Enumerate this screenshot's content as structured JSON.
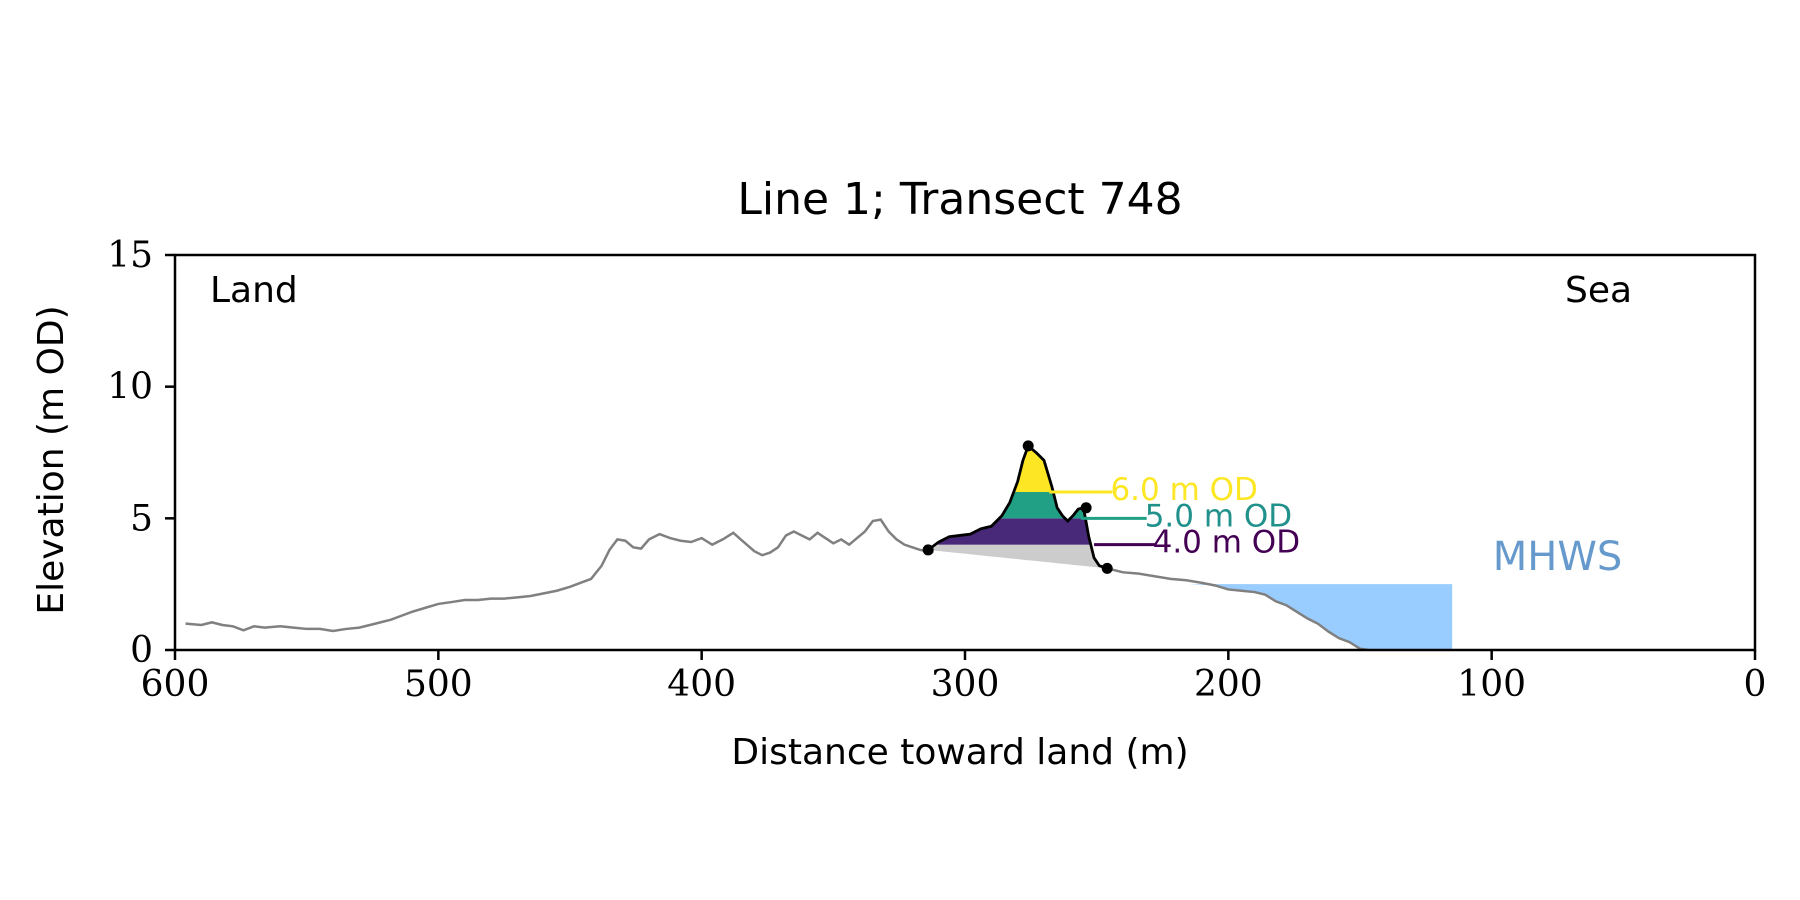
{
  "chart_data": {
    "type": "line",
    "title": "Line 1; Transect 748",
    "xlabel": "Distance toward land (m)",
    "ylabel": "Elevation (m OD)",
    "xlim": [
      600,
      0
    ],
    "ylim": [
      0,
      15
    ],
    "x_ticks": [
      600,
      500,
      400,
      300,
      200,
      100,
      0
    ],
    "y_ticks": [
      0,
      5,
      10,
      15
    ],
    "grid": false,
    "annotations": {
      "land": "Land",
      "sea": "Sea",
      "mhws": "MHWS"
    },
    "colors": {
      "profile": "#808080",
      "dune_outline": "#000000",
      "dune_base_fill": "#cccccc",
      "sea_fill": "#99ccff",
      "mhws_text": "#6699cc",
      "level_6": "#fde725",
      "level_5": "#21a085",
      "level_4": "#440154",
      "band_6": "#fde725",
      "band_5": "#21a085",
      "band_4": "#482878"
    },
    "series": [
      {
        "role": "profile",
        "x": [
          596,
          590,
          586,
          582,
          578,
          574,
          570,
          566,
          560,
          555,
          550,
          545,
          540,
          535,
          530,
          526,
          522,
          518,
          514,
          510,
          505,
          500,
          495,
          490,
          485,
          480,
          475,
          470,
          465,
          460,
          455,
          450,
          446,
          442,
          438,
          435,
          432,
          429,
          426,
          423,
          420,
          416,
          412,
          408,
          404,
          400,
          396,
          392,
          388,
          384,
          380,
          377,
          374,
          371,
          368,
          365,
          362,
          359,
          356,
          353,
          350,
          347,
          344,
          341,
          338,
          335,
          332,
          329,
          326,
          323,
          320,
          317,
          314,
          312
        ],
        "y": [
          1.0,
          0.95,
          1.05,
          0.95,
          0.9,
          0.75,
          0.9,
          0.85,
          0.9,
          0.85,
          0.8,
          0.8,
          0.72,
          0.8,
          0.85,
          0.95,
          1.05,
          1.15,
          1.3,
          1.45,
          1.6,
          1.75,
          1.82,
          1.9,
          1.9,
          1.95,
          1.95,
          2.0,
          2.05,
          2.15,
          2.25,
          2.4,
          2.55,
          2.7,
          3.2,
          3.8,
          4.2,
          4.15,
          3.9,
          3.85,
          4.2,
          4.4,
          4.25,
          4.15,
          4.1,
          4.25,
          4.0,
          4.2,
          4.45,
          4.1,
          3.75,
          3.6,
          3.7,
          3.9,
          4.35,
          4.5,
          4.35,
          4.2,
          4.45,
          4.25,
          4.05,
          4.2,
          4.0,
          4.25,
          4.5,
          4.9,
          4.95,
          4.5,
          4.2,
          4.0,
          3.9,
          3.8,
          3.75,
          3.7
        ]
      },
      {
        "role": "profile",
        "x": [
          246,
          240,
          234,
          228,
          222,
          216,
          210,
          205,
          200,
          195,
          190,
          186,
          182,
          178,
          174,
          170,
          166,
          162,
          158,
          154,
          150,
          147
        ],
        "y": [
          3.1,
          2.95,
          2.9,
          2.8,
          2.7,
          2.65,
          2.55,
          2.45,
          2.3,
          2.25,
          2.2,
          2.1,
          1.85,
          1.7,
          1.45,
          1.2,
          1.0,
          0.7,
          0.45,
          0.3,
          0.05,
          0.0
        ]
      },
      {
        "role": "dune",
        "x": [
          314,
          310,
          306,
          302,
          298,
          294,
          290,
          286,
          283,
          280,
          278,
          276,
          273,
          270,
          267,
          265,
          263,
          261,
          259,
          257,
          255,
          253,
          251,
          249,
          246
        ],
        "y": [
          3.8,
          4.1,
          4.3,
          4.35,
          4.4,
          4.6,
          4.7,
          5.1,
          5.6,
          6.4,
          7.2,
          7.75,
          7.5,
          7.2,
          6.2,
          5.4,
          5.1,
          4.9,
          5.1,
          5.35,
          5.4,
          4.3,
          3.5,
          3.2,
          3.1
        ]
      }
    ],
    "dune_points": [
      {
        "x": 314,
        "y": 3.8
      },
      {
        "x": 276,
        "y": 7.75
      },
      {
        "x": 254,
        "y": 5.4
      },
      {
        "x": 246,
        "y": 3.1
      }
    ],
    "dune_base": {
      "x": [
        314,
        246
      ],
      "y": [
        3.8,
        3.1
      ]
    },
    "sea_region": {
      "x_start": 215,
      "x_end": 115,
      "y_level": 2.5
    },
    "mhws": {
      "x": 75,
      "y": 3.5
    },
    "levels": [
      {
        "value": 6.0,
        "label": "6.0 m OD",
        "line_x": [
          268,
          244
        ],
        "text_x": 244
      },
      {
        "value": 5.0,
        "label": "5.0 m OD",
        "line_x": [
          256,
          231
        ],
        "text_x": 231
      },
      {
        "value": 4.0,
        "label": "4.0 m OD",
        "line_x": [
          251,
          228
        ],
        "text_x": 228
      }
    ]
  }
}
